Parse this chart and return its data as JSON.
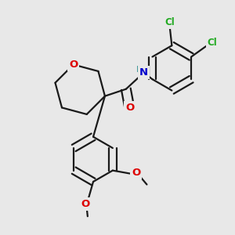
{
  "background_color": "#e8e8e8",
  "bond_color": "#1a1a1a",
  "bond_width": 1.6,
  "atom_colors": {
    "O": "#dd0000",
    "N": "#0000cc",
    "H": "#449999",
    "Cl": "#22aa22",
    "C": "#1a1a1a"
  },
  "font_size": 8.5,
  "figsize": [
    3.0,
    3.0
  ],
  "dpi": 100,
  "xlim": [
    -2.2,
    2.8
  ],
  "ylim": [
    -2.8,
    2.2
  ]
}
